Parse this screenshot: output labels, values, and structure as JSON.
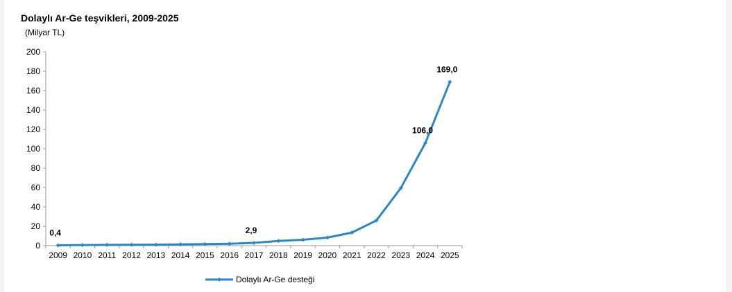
{
  "chart_data": {
    "type": "line",
    "title": "Dolaylı Ar-Ge teşvikleri, 2009-2025",
    "unit": "(Milyar TL)",
    "xlabel": "",
    "ylabel": "",
    "ylim": [
      0,
      200
    ],
    "yticks": [
      0,
      20,
      40,
      60,
      80,
      100,
      120,
      140,
      160,
      180,
      200
    ],
    "categories": [
      "2009",
      "2010",
      "2011",
      "2012",
      "2013",
      "2014",
      "2015",
      "2016",
      "2017",
      "2018",
      "2019",
      "2020",
      "2021",
      "2022",
      "2023",
      "2024",
      "2025"
    ],
    "series": [
      {
        "name": "Dolaylı Ar-Ge desteği",
        "color": "#2e86c1",
        "values": [
          0.4,
          0.6,
          0.8,
          0.9,
          1.0,
          1.3,
          1.6,
          2.0,
          2.9,
          4.8,
          6.1,
          8.3,
          13.5,
          26.0,
          59.5,
          106.0,
          169.0
        ]
      }
    ],
    "data_labels": [
      {
        "category": "2009",
        "text": "0,4"
      },
      {
        "category": "2017",
        "text": "2,9"
      },
      {
        "category": "2024",
        "text": "106,0"
      },
      {
        "category": "2025",
        "text": "169,0"
      }
    ],
    "legend": {
      "position": "bottom",
      "label": "Dolaylı Ar-Ge desteği"
    },
    "grid": false
  }
}
